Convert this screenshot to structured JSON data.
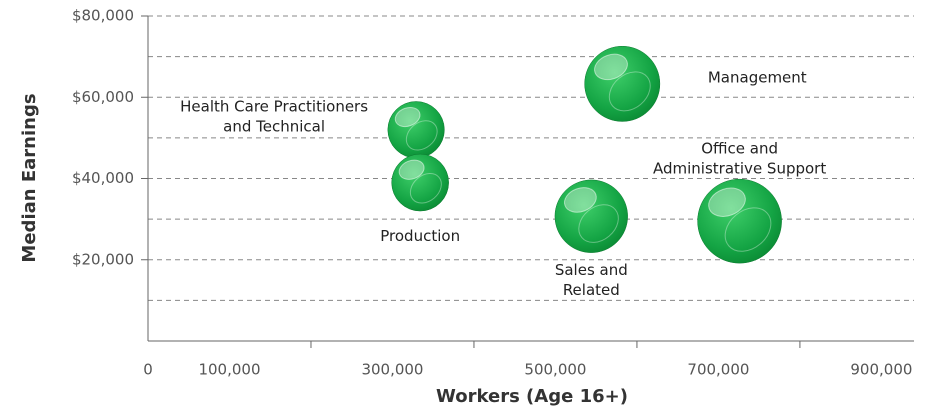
{
  "chart_data": {
    "type": "bubble",
    "x_label": "Workers (Age 16+)",
    "y_label": "Median Earnings",
    "labels": [
      [
        "Health Care Practitioners",
        "and Technical"
      ],
      [
        "Production"
      ],
      [
        "Management"
      ],
      [
        "Sales and",
        "Related"
      ],
      [
        "Office and",
        "Administrative Support"
      ]
    ],
    "x": [
      329000,
      334000,
      582000,
      544000,
      726000
    ],
    "values": [
      52000,
      39000,
      63300,
      30700,
      29500
    ],
    "sizes": [
      329000,
      334000,
      582000,
      544000,
      726000
    ],
    "color": "#1aa64a",
    "xlim": [
      0,
      940000
    ],
    "xticks": [
      0,
      {
        "value": 100000,
        "label": "100,000"
      },
      {
        "value": 300000,
        "label": "300,000"
      },
      {
        "value": 500000,
        "label": "500,000"
      },
      {
        "value": 700000,
        "label": "700,000"
      },
      {
        "value": 900000,
        "label": "900,000"
      }
    ],
    "xtick_marks": [
      200000,
      400000,
      600000,
      800000
    ],
    "ylim": [
      0,
      80000
    ],
    "yticks": [
      {
        "value": 20000,
        "label": "$20,000"
      },
      {
        "value": 40000,
        "label": "$40,000"
      },
      {
        "value": 60000,
        "label": "$60,000"
      },
      {
        "value": 80000,
        "label": "$80,000"
      }
    ],
    "ygrid": [
      10000,
      20000,
      30000,
      40000,
      50000,
      60000,
      70000,
      80000
    ],
    "grid": true
  }
}
